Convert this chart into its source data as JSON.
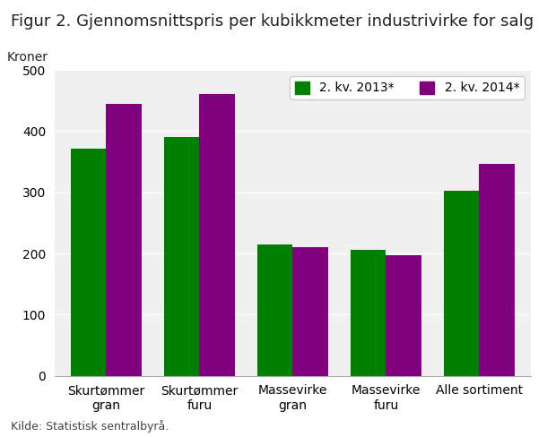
{
  "title": "Figur 2. Gjennomsnittspris per kubikkmeter industrivirke for salg",
  "ylabel": "Kroner",
  "categories": [
    "Skurtømmer\ngran",
    "Skurtømmer\nfuru",
    "Massevirke\ngran",
    "Massevirke\nfuru",
    "Alle sortiment"
  ],
  "series": [
    {
      "label": "2. kv. 2013*",
      "values": [
        372,
        390,
        214,
        206,
        303
      ],
      "color": "#008000"
    },
    {
      "label": "2. kv. 2014*",
      "values": [
        444,
        460,
        210,
        197,
        347
      ],
      "color": "#800080"
    }
  ],
  "ylim": [
    0,
    500
  ],
  "yticks": [
    0,
    100,
    200,
    300,
    400,
    500
  ],
  "background_color": "#ffffff",
  "plot_background": "#f0f0f0",
  "grid_color": "#ffffff",
  "title_fontsize": 13,
  "ylabel_fontsize": 10,
  "tick_fontsize": 10,
  "legend_fontsize": 10,
  "source_text": "Kilde: Statistisk sentralbyrå.",
  "bar_width": 0.38
}
